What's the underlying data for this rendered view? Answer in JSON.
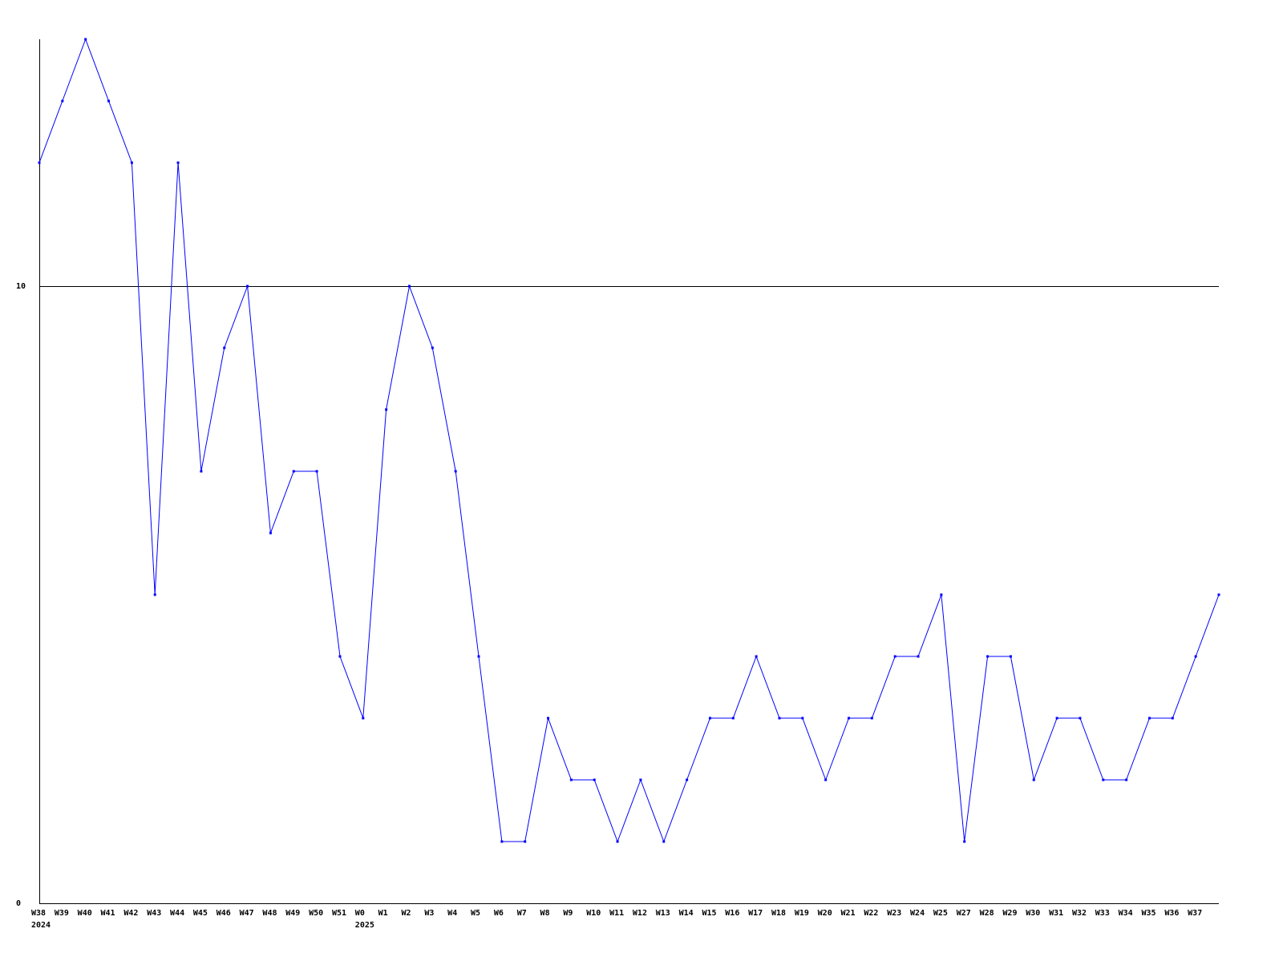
{
  "chart_data": {
    "type": "line",
    "title": "",
    "xlabel": "",
    "ylabel": "",
    "ylim": [
      0,
      14
    ],
    "yticks": [
      "0",
      "10"
    ],
    "grid": "horizontal line at 10",
    "legend": "none",
    "categories": [
      "W38",
      "W39",
      "W40",
      "W41",
      "W42",
      "W43",
      "W44",
      "W45",
      "W46",
      "W47",
      "W48",
      "W49",
      "W50",
      "W51",
      "W0",
      "W1",
      "W2",
      "W3",
      "W4",
      "W5",
      "W6",
      "W7",
      "W8",
      "W9",
      "W10",
      "W11",
      "W12",
      "W13",
      "W14",
      "W15",
      "W16",
      "W17",
      "W18",
      "W19",
      "W20",
      "W21",
      "W22",
      "W23",
      "W24",
      "W25",
      "W27",
      "W28",
      "W29",
      "W30",
      "W31",
      "W32",
      "W33",
      "W34",
      "W35",
      "W36",
      "W37",
      ""
    ],
    "year_labels": [
      {
        "at": "W38",
        "text": "2024"
      },
      {
        "at": "W0",
        "text": "2025"
      }
    ],
    "values": [
      12,
      13,
      14,
      13,
      12,
      5,
      12,
      7,
      9,
      10,
      6,
      7,
      7,
      4,
      3,
      8,
      10,
      9,
      7,
      4,
      1,
      1,
      3,
      2,
      2,
      1,
      2,
      1,
      2,
      3,
      3,
      4,
      3,
      3,
      2,
      3,
      3,
      4,
      4,
      5,
      1,
      4,
      4,
      2,
      3,
      3,
      2,
      2,
      3,
      3,
      4,
      5
    ],
    "colors": {
      "line": "#0000ff",
      "axis": "#000000"
    }
  }
}
